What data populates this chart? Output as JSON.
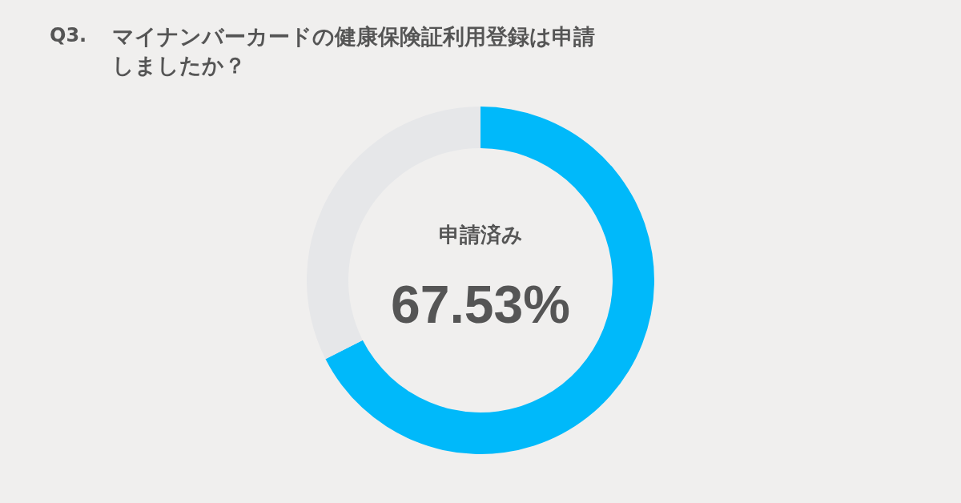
{
  "chart_data": {
    "type": "donut",
    "title": "Q3.",
    "subtitle": "マイナンバーカードの健康保険証利用登録は申請しましたか？",
    "categories": [
      "申請済み",
      null
    ],
    "values": [
      67.53,
      32.47
    ],
    "colors": [
      "#00b9fa",
      "#e6e7e9"
    ],
    "value_labels": [
      "67.53%",
      null
    ]
  }
}
